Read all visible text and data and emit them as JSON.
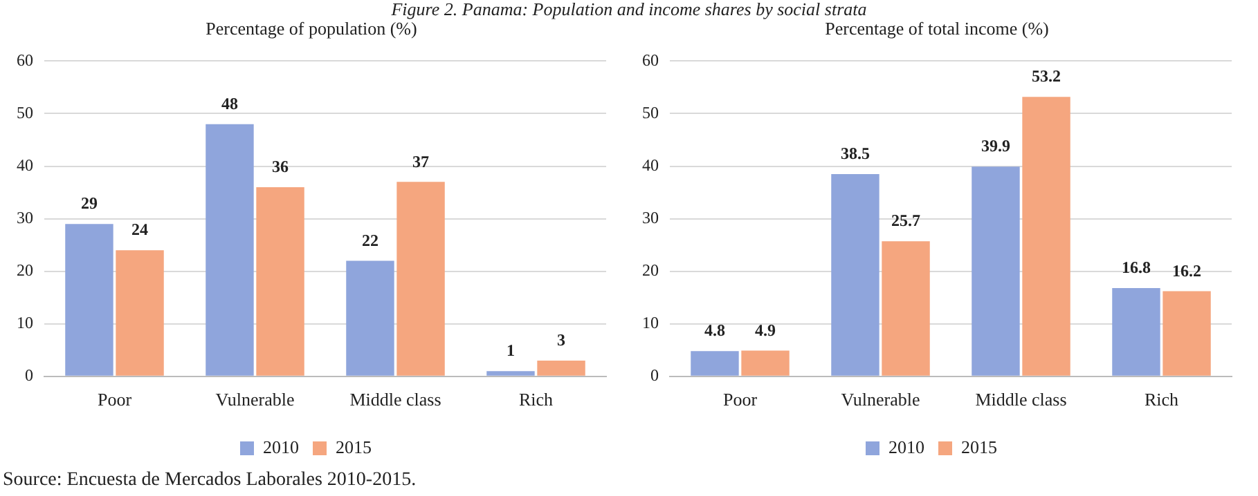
{
  "chart_data": [
    {
      "type": "bar",
      "title": "Figure 2. Panama: Population and income shares by social strata",
      "subtitle": "Percentage of population (%)",
      "categories": [
        "Poor",
        "Vulnerable",
        "Middle class",
        "Rich"
      ],
      "series": [
        {
          "name": "2010",
          "color": "#8fa5dc",
          "values": [
            29,
            48,
            22,
            1
          ]
        },
        {
          "name": "2015",
          "color": "#f5a67f",
          "values": [
            24,
            36,
            37,
            3
          ]
        }
      ],
      "ylim": [
        0,
        60
      ],
      "yticks": [
        0,
        10,
        20,
        30,
        40,
        50,
        60
      ],
      "grid": "y",
      "legend": "bottom",
      "data_labels": true,
      "annotations": [
        "Source: Encuesta de Mercados Laborales 2010-2015."
      ]
    },
    {
      "type": "bar",
      "subtitle": "Percentage of total income (%)",
      "categories": [
        "Poor",
        "Vulnerable",
        "Middle class",
        "Rich"
      ],
      "series": [
        {
          "name": "2010",
          "color": "#8fa5dc",
          "values": [
            4.8,
            38.5,
            39.9,
            16.8
          ]
        },
        {
          "name": "2015",
          "color": "#f5a67f",
          "values": [
            4.9,
            25.7,
            53.2,
            16.2
          ]
        }
      ],
      "ylim": [
        0,
        60
      ],
      "yticks": [
        0,
        10,
        20,
        30,
        40,
        50,
        60
      ],
      "grid": "y",
      "legend": "bottom",
      "data_labels": true
    }
  ]
}
